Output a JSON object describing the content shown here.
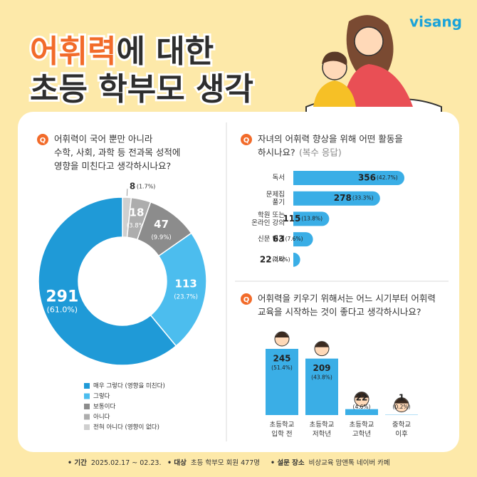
{
  "brand": "visang",
  "title": {
    "highlight": "어휘력",
    "rest": "에 대한",
    "line2": "초등 학부모 생각"
  },
  "badge": "Q",
  "chart_data": [
    {
      "type": "pie",
      "question": [
        "어휘력이 국어 뿐만 아니라",
        "수학, 사회, 과학 등 전과목 성적에",
        "영향을 미친다고 생각하시나요?"
      ],
      "categories": [
        "매우 그렇다 (영향을 미친다)",
        "그렇다",
        "보통이다",
        "아니다",
        "전혀 아니다 (영향이 없다)"
      ],
      "values": [
        291,
        113,
        47,
        18,
        8
      ],
      "value_labels": [
        "(61.0%)",
        "(23.7%)",
        "(9.9%)",
        "(3.8%)",
        "(1.7%)"
      ],
      "colors": [
        "#1f9ad7",
        "#4cbdee",
        "#8c8c8c",
        "#adadad",
        "#cfcfcf"
      ]
    },
    {
      "type": "hbar",
      "question": [
        "자녀의 어휘력 향상을 위해 어떤 활동을",
        "하시나요?"
      ],
      "note": "(복수 응답)",
      "categories": [
        "독서",
        "문제집\n풀기",
        "학원 또는\n온라인 강의",
        "신문 읽기",
        "기타"
      ],
      "values": [
        356,
        278,
        115,
        63,
        22
      ],
      "value_labels": [
        "(42.7%)",
        "(33.3%)",
        "(13.8%)",
        "(7.6%)",
        "(2.6%)"
      ],
      "color": "#3aaee6"
    },
    {
      "type": "bar",
      "question": [
        "어휘력을 키우기 위해서는 어느 시기부터 어휘력",
        "교육을 시작하는 것이 좋다고 생각하시나요?"
      ],
      "categories": [
        "초등학교\n입학 전",
        "초등학교\n저학년",
        "초등학교\n고학년",
        "중학교\n이후"
      ],
      "values": [
        245,
        209,
        22,
        1
      ],
      "value_labels": [
        "(51.4%)",
        "(43.8%)",
        "(4.6%)",
        "(0.2%)"
      ],
      "color": "#3aaee6"
    }
  ],
  "footer": [
    {
      "label": "• 기간",
      "text": "2025.02.17 ~ 02.23."
    },
    {
      "label": "• 대상",
      "text": "초등 학부모 회원 477명"
    },
    {
      "label": "• 설문 장소",
      "text": "비상교육 맘앤톡 네이버 카페"
    }
  ]
}
